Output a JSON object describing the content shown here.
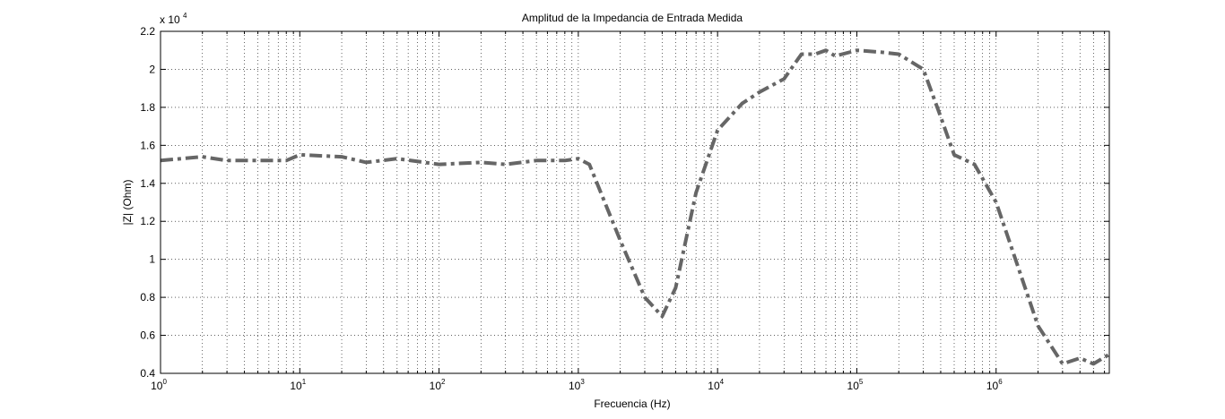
{
  "chart_data": {
    "type": "line",
    "title": "Amplitud de la Impedancia de Entrada Medida",
    "xlabel": "Frecuencia (Hz)",
    "ylabel": "|Z| (Ohm)",
    "x_scale": "log",
    "xlim": [
      1,
      6500000
    ],
    "ylim": [
      4000,
      22000
    ],
    "y_multiplier_label": "x 10",
    "y_multiplier_exponent": "4",
    "grid": true,
    "x_tick_bases": [
      "10",
      "10",
      "10",
      "10",
      "10",
      "10",
      "10"
    ],
    "x_tick_exponents": [
      "0",
      "1",
      "2",
      "3",
      "4",
      "5",
      "6"
    ],
    "y_ticks": [
      "0.4",
      "0.6",
      "0.8",
      "1",
      "1.2",
      "1.4",
      "1.6",
      "1.8",
      "2",
      "2.2"
    ],
    "series": [
      {
        "color": "#666666",
        "style": "dash-dot",
        "x": [
          1,
          2,
          3,
          5,
          8,
          10,
          20,
          30,
          50,
          100,
          200,
          300,
          500,
          800,
          1000,
          1200,
          2000,
          3000,
          4000,
          5000,
          7000,
          10000,
          15000,
          20000,
          30000,
          40000,
          50000,
          60000,
          70000,
          100000,
          150000,
          200000,
          300000,
          400000,
          500000,
          700000,
          1000000,
          2000000,
          3000000,
          4000000,
          5000000,
          6500000
        ],
        "y": [
          15200,
          15400,
          15200,
          15200,
          15200,
          15500,
          15400,
          15100,
          15300,
          15000,
          15100,
          15000,
          15200,
          15200,
          15300,
          15000,
          11000,
          8000,
          7000,
          8500,
          13500,
          16800,
          18200,
          18800,
          19500,
          20800,
          20800,
          21000,
          20700,
          21000,
          20900,
          20800,
          20000,
          17500,
          15500,
          15000,
          13000,
          6500,
          4500,
          4800,
          4500,
          5000
        ]
      }
    ]
  }
}
